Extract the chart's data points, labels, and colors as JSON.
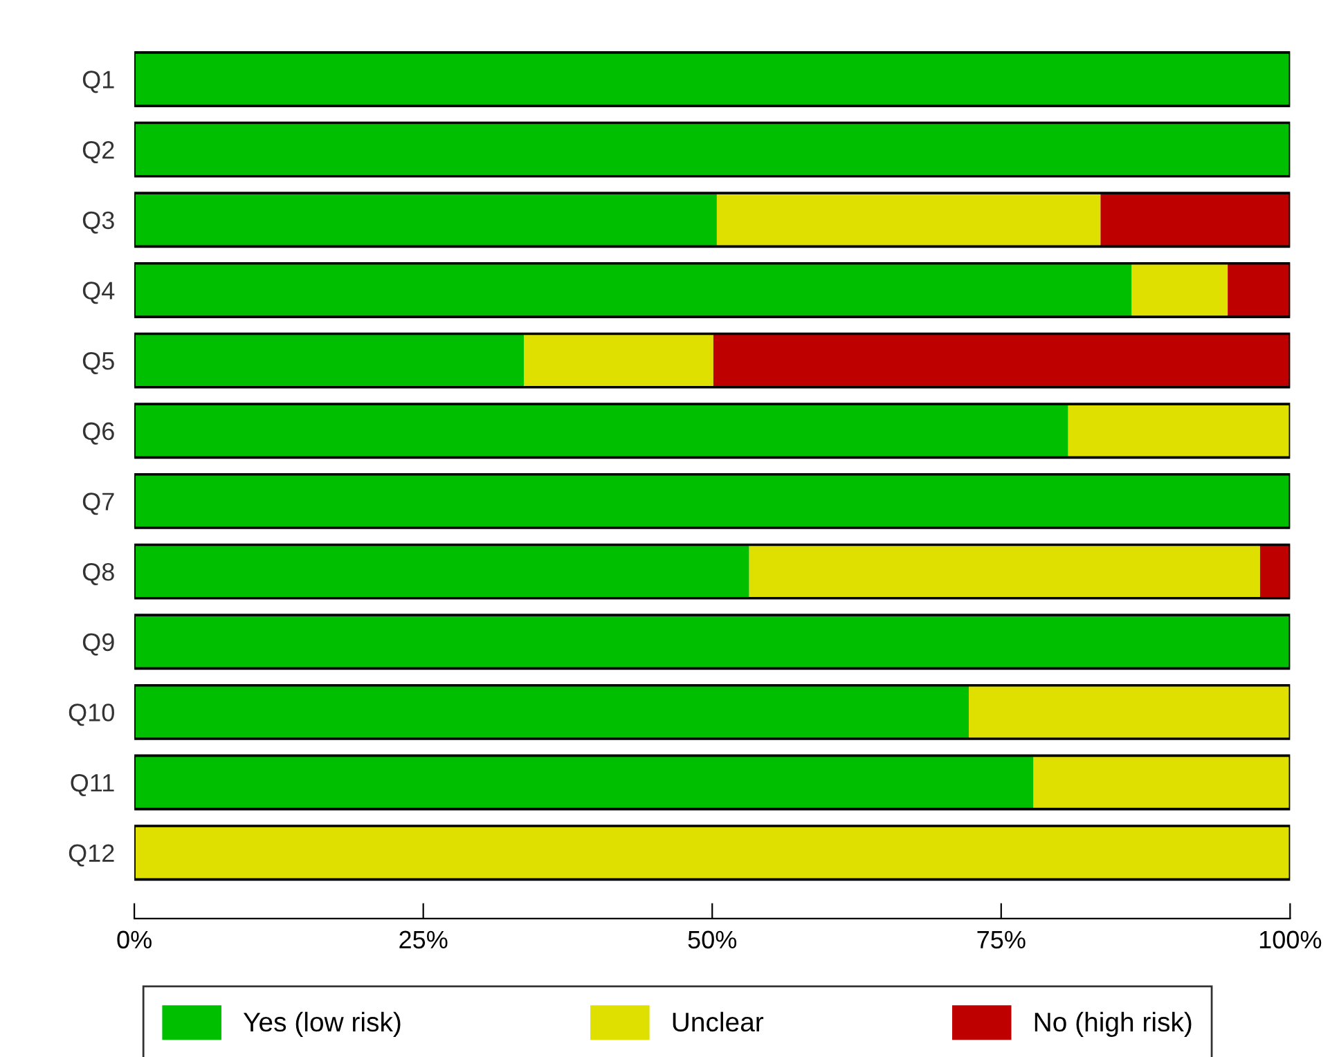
{
  "chart_data": {
    "type": "bar",
    "orientation": "horizontal",
    "stacked": true,
    "categories": [
      "Q1",
      "Q2",
      "Q3",
      "Q4",
      "Q5",
      "Q6",
      "Q7",
      "Q8",
      "Q9",
      "Q10",
      "Q11",
      "Q12"
    ],
    "series": [
      {
        "name": "Yes (low risk)",
        "color": "#00bf00",
        "values": [
          100,
          100,
          50.4,
          86.3,
          33.7,
          80.8,
          100,
          53.2,
          100,
          72.2,
          77.8,
          0
        ]
      },
      {
        "name": "Unclear",
        "color": "#e0e000",
        "values": [
          0,
          0,
          33.2,
          8.3,
          16.4,
          19.2,
          0,
          44.2,
          0,
          27.8,
          22.2,
          100
        ]
      },
      {
        "name": "No (high risk)",
        "color": "#bf0000",
        "values": [
          0,
          0,
          16.4,
          5.4,
          49.9,
          0,
          0,
          2.6,
          0,
          0,
          0,
          0
        ]
      }
    ],
    "xlim": [
      0,
      100
    ],
    "xticks": [
      {
        "value": 0,
        "label": "0%"
      },
      {
        "value": 25,
        "label": "25%"
      },
      {
        "value": 50,
        "label": "50%"
      },
      {
        "value": 75,
        "label": "75%"
      },
      {
        "value": 100,
        "label": "100%"
      }
    ],
    "legend": "bottom",
    "grid": false
  }
}
